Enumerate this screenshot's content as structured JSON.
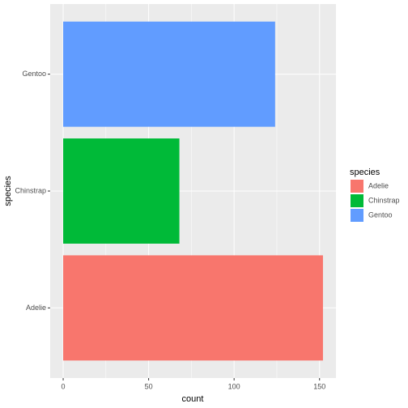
{
  "chart_data": {
    "type": "bar",
    "orientation": "horizontal",
    "categories": [
      "Adelie",
      "Chinstrap",
      "Gentoo"
    ],
    "values": [
      152,
      68,
      124
    ],
    "colors": [
      "#F8766D",
      "#00BA38",
      "#619CFF"
    ],
    "xlabel": "count",
    "ylabel": "species",
    "xlim": [
      -7.6,
      159.6
    ],
    "xticks": [
      0,
      50,
      100,
      150
    ],
    "grid": true,
    "legend": {
      "title": "species",
      "position": "right",
      "entries": [
        "Adelie",
        "Chinstrap",
        "Gentoo"
      ]
    }
  }
}
